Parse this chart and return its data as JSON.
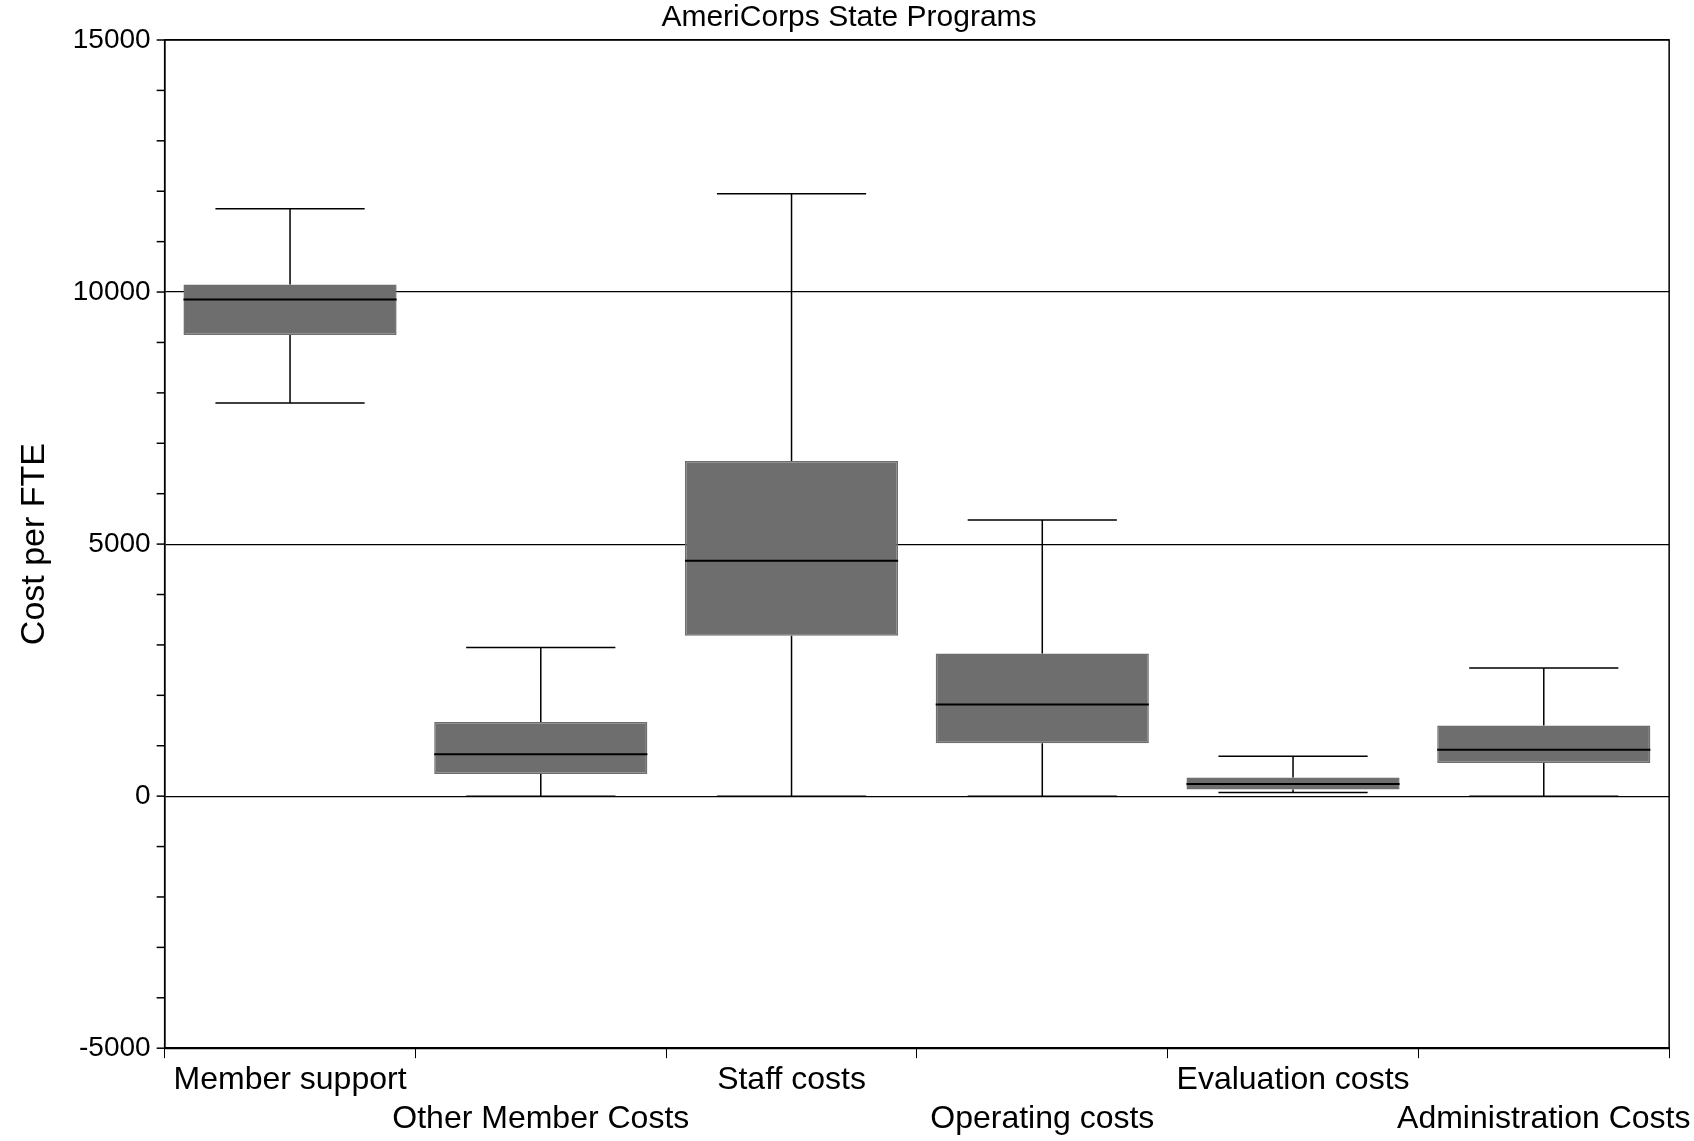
{
  "chart_data": {
    "type": "box",
    "title": "AmeriCorps State Programs",
    "ylabel": "Cost per FTE",
    "categories": [
      "Member support",
      "Other Member Costs",
      "Staff costs",
      "Operating costs",
      "Evaluation costs",
      "Administration Costs"
    ],
    "color": "#6e6e6e",
    "boxes": [
      {
        "low": 7800,
        "q1": 9150,
        "median": 9850,
        "q3": 10150,
        "high": 11650
      },
      {
        "low": 0,
        "q1": 440,
        "median": 830,
        "q3": 1470,
        "high": 2950
      },
      {
        "low": 0,
        "q1": 3180,
        "median": 4670,
        "q3": 6650,
        "high": 11950
      },
      {
        "low": 0,
        "q1": 1050,
        "median": 1820,
        "q3": 2830,
        "high": 5480
      },
      {
        "low": 70,
        "q1": 130,
        "median": 240,
        "q3": 370,
        "high": 790
      },
      {
        "low": 0,
        "q1": 660,
        "median": 920,
        "q3": 1400,
        "high": 2540
      }
    ],
    "ylim": [
      -5000,
      15000
    ],
    "yticks": [
      -5000,
      {
        "value": -4000,
        "label": null
      },
      {
        "value": -3000,
        "label": null
      },
      {
        "value": -2000,
        "label": null
      },
      {
        "value": -1000,
        "label": null
      },
      0,
      {
        "value": 1000,
        "label": null
      },
      {
        "value": 2000,
        "label": null
      },
      {
        "value": 3000,
        "label": null
      },
      {
        "value": 4000,
        "label": null
      },
      5000,
      {
        "value": 6000,
        "label": null
      },
      {
        "value": 7000,
        "label": null
      },
      {
        "value": 8000,
        "label": null
      },
      {
        "value": 9000,
        "label": null
      },
      10000,
      {
        "value": 11000,
        "label": null
      },
      {
        "value": 12000,
        "label": null
      },
      {
        "value": 13000,
        "label": null
      },
      {
        "value": 14000,
        "label": null
      },
      15000
    ],
    "grid": "y",
    "legend": false
  }
}
